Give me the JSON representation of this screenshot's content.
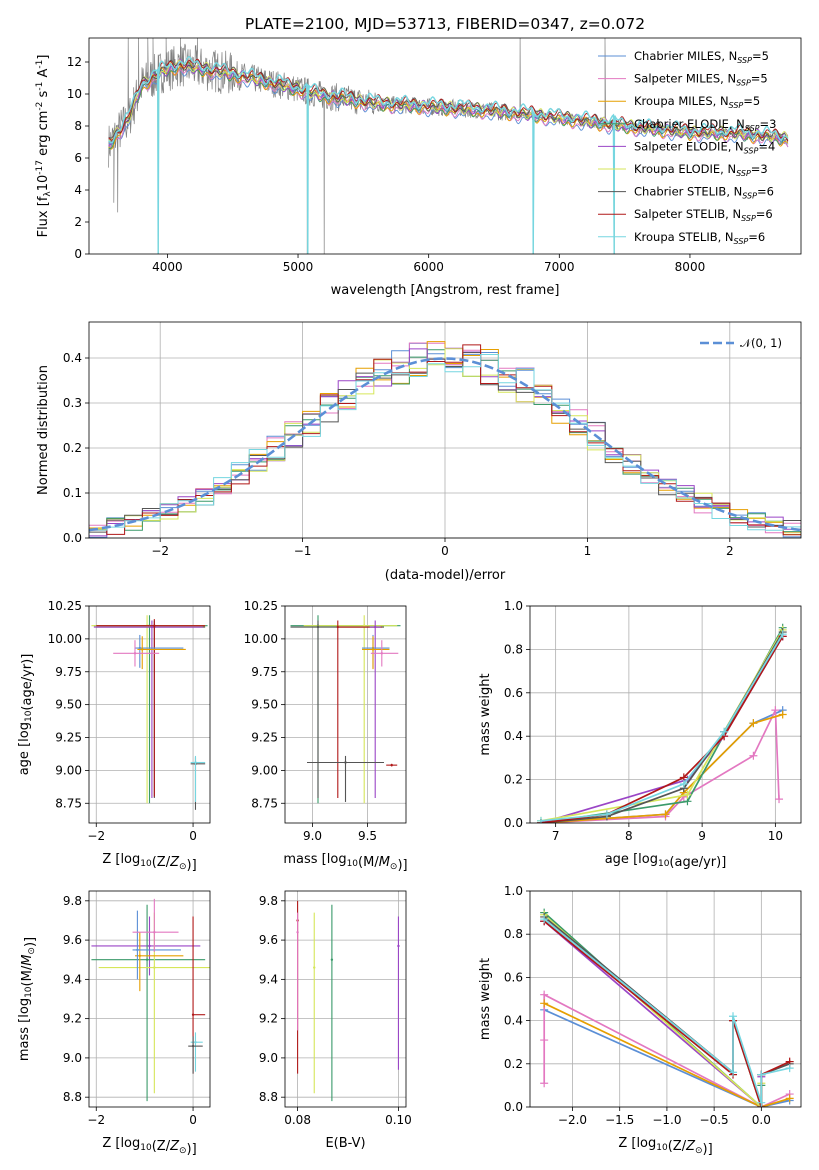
{
  "title": "PLATE=2100, MJD=53713, FIBERID=0347, z=0.072",
  "colors": {
    "chab_miles": "#5b8fd6",
    "salp_miles": "#e378c1",
    "krou_miles": "#e69f00",
    "chab_elodie": "#3a9a6a",
    "salp_elodie": "#9a45c6",
    "krou_elodie": "#d6e65a",
    "chab_stelib": "#555555",
    "salp_stelib": "#b01818",
    "krou_stelib": "#76d6e0",
    "data": "#808080",
    "gauss": "#5b8fd6"
  },
  "legend": [
    {
      "name": "Chabrier MILES, N",
      "sub": "SSP",
      "n": "=5",
      "color_key": "chab_miles"
    },
    {
      "name": "Salpeter MILES, N",
      "sub": "SSP",
      "n": "=5",
      "color_key": "salp_miles"
    },
    {
      "name": "Kroupa MILES, N",
      "sub": "SSP",
      "n": "=5",
      "color_key": "krou_miles"
    },
    {
      "name": "Chabrier ELODIE, N",
      "sub": "SSP",
      "n": "=3",
      "color_key": "chab_elodie"
    },
    {
      "name": "Salpeter ELODIE, N",
      "sub": "SSP",
      "n": "=4",
      "color_key": "salp_elodie"
    },
    {
      "name": "Kroupa ELODIE, N",
      "sub": "SSP",
      "n": "=3",
      "color_key": "krou_elodie"
    },
    {
      "name": "Chabrier STELIB, N",
      "sub": "SSP",
      "n": "=6",
      "color_key": "chab_stelib"
    },
    {
      "name": "Salpeter STELIB, N",
      "sub": "SSP",
      "n": "=6",
      "color_key": "salp_stelib"
    },
    {
      "name": "Kroupa STELIB, N",
      "sub": "SSP",
      "n": "=6",
      "color_key": "krou_stelib"
    }
  ],
  "chart_data": [
    {
      "id": "spectrum",
      "type": "line",
      "xlabel": "wavelength [Angstrom, rest frame]",
      "ylabel_parts": [
        "Flux [f",
        "λ",
        "10",
        "-17",
        " erg cm",
        "-2",
        " s",
        "-1",
        " A",
        "-1",
        "]"
      ],
      "xlim": [
        3400,
        8850
      ],
      "ylim": [
        0,
        13.5
      ],
      "xticks": [
        4000,
        5000,
        6000,
        7000,
        8000
      ],
      "yticks": [
        0,
        2,
        4,
        6,
        8,
        10,
        12
      ],
      "continuum_anchors": [
        [
          3550,
          6.8
        ],
        [
          3700,
          8.4
        ],
        [
          3800,
          10.5
        ],
        [
          3950,
          11.4
        ],
        [
          4100,
          11.8
        ],
        [
          4400,
          11.4
        ],
        [
          4800,
          10.7
        ],
        [
          5200,
          9.9
        ],
        [
          5600,
          9.4
        ],
        [
          6000,
          9.2
        ],
        [
          6400,
          9.0
        ],
        [
          6800,
          8.7
        ],
        [
          7200,
          8.3
        ],
        [
          7600,
          7.9
        ],
        [
          8000,
          7.6
        ],
        [
          8400,
          7.5
        ],
        [
          8750,
          7.2
        ]
      ],
      "data_spikes": [
        [
          3590,
          3.2
        ],
        [
          3620,
          2.6
        ],
        [
          3700,
          13.5
        ],
        [
          3780,
          13.5
        ],
        [
          3850,
          13.5
        ],
        [
          3890,
          13.5
        ],
        [
          3930,
          0
        ],
        [
          3990,
          13.5
        ],
        [
          4100,
          13.5
        ],
        [
          4230,
          13.5
        ],
        [
          5070,
          0
        ],
        [
          5200,
          0
        ],
        [
          6700,
          13.5
        ],
        [
          6800,
          0
        ],
        [
          7350,
          13.5
        ],
        [
          7420,
          0
        ]
      ],
      "model_dips": [
        [
          3930,
          0
        ],
        [
          5075,
          0
        ],
        [
          6800,
          0
        ],
        [
          7420,
          0
        ]
      ]
    },
    {
      "id": "residual-histogram",
      "type": "histogram",
      "xlabel": "(data-model)/error",
      "ylabel": "Normed distribution",
      "xlim": [
        -2.5,
        2.5
      ],
      "ylim": [
        0,
        0.48
      ],
      "xticks": [
        -2,
        -1,
        0,
        1,
        2
      ],
      "yticks": [
        0.0,
        0.1,
        0.2,
        0.3,
        0.4
      ],
      "bin_width": 0.125,
      "gauss_label": "𝒩(0, 1)"
    },
    {
      "id": "age-vs-Z",
      "type": "errorbar",
      "xlabel": "Z [log10(Z/Z⊙)]",
      "ylabel": "age  [log10(age/yr)]",
      "xlim": [
        -2.15,
        0.35
      ],
      "ylim": [
        8.6,
        10.25
      ],
      "xticks": [
        -2,
        0
      ],
      "yticks": [
        8.75,
        9.0,
        9.25,
        9.5,
        9.75,
        10.0,
        10.25
      ],
      "points": [
        {
          "c": "chab_elodie",
          "x": -0.9,
          "y": 10.1,
          "xe": [
            1.15,
            1.2
          ],
          "ye": [
            1.35,
            0.08
          ]
        },
        {
          "c": "krou_elodie",
          "x": -0.95,
          "y": 10.1,
          "xe": [
            1.15,
            1.2
          ],
          "ye": [
            1.35,
            0.08
          ]
        },
        {
          "c": "chab_stelib",
          "x": -0.8,
          "y": 10.09,
          "xe": [
            1.2,
            1.05
          ],
          "ye": [
            1.3,
            0.05
          ]
        },
        {
          "c": "salp_elodie",
          "x": -0.85,
          "y": 10.09,
          "xe": [
            1.2,
            1.05
          ],
          "ye": [
            1.3,
            0.05
          ]
        },
        {
          "c": "salp_stelib",
          "x": -0.8,
          "y": 10.1,
          "xe": [
            1.2,
            1.05
          ],
          "ye": [
            1.3,
            0.05
          ]
        },
        {
          "c": "chab_miles",
          "x": -1.1,
          "y": 9.93,
          "xe": [
            0.1,
            0.9
          ],
          "ye": [
            0.15,
            0.1
          ]
        },
        {
          "c": "krou_miles",
          "x": -1.05,
          "y": 9.92,
          "xe": [
            0.1,
            0.9
          ],
          "ye": [
            0.15,
            0.1
          ]
        },
        {
          "c": "salp_miles",
          "x": -1.2,
          "y": 9.89,
          "xe": [
            0.45,
            0.5
          ],
          "ye": [
            0.1,
            0.1
          ]
        },
        {
          "c": "chab_stelib",
          "x": 0.05,
          "y": 9.05,
          "xe": [
            0.1,
            0.2
          ],
          "ye": [
            0.35,
            0.05
          ]
        },
        {
          "c": "krou_stelib",
          "x": 0.05,
          "y": 9.06,
          "xe": [
            0.1,
            0.2
          ],
          "ye": [
            0.3,
            0.05
          ]
        }
      ]
    },
    {
      "id": "age-vs-mass",
      "type": "errorbar",
      "xlabel": "mass [log10(M/M⊙)]",
      "ylabel": "",
      "xlim": [
        8.75,
        9.85
      ],
      "ylim": [
        8.6,
        10.25
      ],
      "xticks": [
        9.0,
        9.5
      ],
      "yticks": [
        8.75,
        9.0,
        9.25,
        9.5,
        9.75,
        10.0,
        10.25
      ],
      "points": [
        {
          "c": "chab_elodie",
          "x": 9.05,
          "y": 10.1,
          "xe": [
            0.25,
            0.75
          ],
          "ye": [
            1.35,
            0.08
          ]
        },
        {
          "c": "krou_elodie",
          "x": 9.47,
          "y": 10.1,
          "xe": [
            0.55,
            0.3
          ],
          "ye": [
            1.35,
            0.08
          ]
        },
        {
          "c": "chab_stelib",
          "x": 9.05,
          "y": 10.09,
          "xe": [
            0.25,
            0.6
          ],
          "ye": [
            1.3,
            0.05
          ]
        },
        {
          "c": "salp_stelib",
          "x": 9.23,
          "y": 10.09,
          "xe": [
            0.0,
            0.4
          ],
          "ye": [
            1.3,
            0.05
          ]
        },
        {
          "c": "salp_elodie",
          "x": 9.57,
          "y": 10.09,
          "xe": [
            0.05,
            0.05
          ],
          "ye": [
            1.3,
            0.05
          ]
        },
        {
          "c": "chab_miles",
          "x": 9.55,
          "y": 9.93,
          "xe": [
            0.1,
            0.15
          ],
          "ye": [
            0.15,
            0.1
          ]
        },
        {
          "c": "krou_miles",
          "x": 9.55,
          "y": 9.92,
          "xe": [
            0.1,
            0.15
          ],
          "ye": [
            0.15,
            0.1
          ]
        },
        {
          "c": "salp_miles",
          "x": 9.63,
          "y": 9.89,
          "xe": [
            0.1,
            0.15
          ],
          "ye": [
            0.1,
            0.1
          ]
        },
        {
          "c": "chab_stelib",
          "x": 9.3,
          "y": 9.06,
          "xe": [
            0.35,
            0.35
          ],
          "ye": [
            0.3,
            0.05
          ]
        },
        {
          "c": "salp_stelib",
          "x": 9.72,
          "y": 9.04,
          "xe": [
            0.05,
            0.05
          ],
          "ye": [
            0.01,
            0.01
          ]
        }
      ]
    },
    {
      "id": "weight-vs-age",
      "type": "line",
      "xlabel": "age  [log10(age/yr)]",
      "ylabel": "mass weight",
      "xlim": [
        6.65,
        10.35
      ],
      "ylim": [
        0,
        1.0
      ],
      "xticks": [
        7,
        8,
        9,
        10
      ],
      "yticks": [
        0.0,
        0.2,
        0.4,
        0.6,
        0.8,
        1.0
      ],
      "series": [
        {
          "c": "chab_miles",
          "x": [
            6.8,
            8.5,
            8.75,
            9.7,
            10.1
          ],
          "y": [
            0.0,
            0.04,
            0.14,
            0.46,
            0.52
          ]
        },
        {
          "c": "salp_miles",
          "x": [
            6.8,
            8.5,
            8.75,
            9.7,
            10.0,
            10.05
          ],
          "y": [
            0.0,
            0.03,
            0.12,
            0.31,
            0.52,
            0.11
          ]
        },
        {
          "c": "krou_miles",
          "x": [
            6.8,
            8.5,
            8.75,
            9.7,
            10.1
          ],
          "y": [
            0.0,
            0.04,
            0.14,
            0.46,
            0.5
          ]
        },
        {
          "c": "chab_elodie",
          "x": [
            6.8,
            8.8,
            10.1
          ],
          "y": [
            0.0,
            0.1,
            0.9
          ]
        },
        {
          "c": "salp_elodie",
          "x": [
            6.8,
            8.8,
            9.3,
            10.1
          ],
          "y": [
            0.0,
            0.2,
            0.4,
            0.86
          ]
        },
        {
          "c": "krou_elodie",
          "x": [
            6.8,
            8.8,
            10.1
          ],
          "y": [
            0.01,
            0.13,
            0.89
          ]
        },
        {
          "c": "chab_stelib",
          "x": [
            6.8,
            7.7,
            8.75,
            9.3,
            10.1
          ],
          "y": [
            0.0,
            0.03,
            0.16,
            0.42,
            0.88
          ]
        },
        {
          "c": "salp_stelib",
          "x": [
            6.8,
            7.7,
            8.75,
            9.3,
            10.1
          ],
          "y": [
            0.0,
            0.04,
            0.21,
            0.4,
            0.86
          ]
        },
        {
          "c": "krou_stelib",
          "x": [
            6.8,
            7.7,
            8.75,
            9.3,
            10.1
          ],
          "y": [
            0.01,
            0.04,
            0.18,
            0.42,
            0.87
          ]
        }
      ]
    },
    {
      "id": "mass-vs-Z",
      "type": "errorbar",
      "xlabel": "Z [log10(Z/Z⊙)]",
      "ylabel": "mass [log10(M/M⊙)]",
      "xlim": [
        -2.15,
        0.35
      ],
      "ylim": [
        8.75,
        9.85
      ],
      "xticks": [
        -2,
        0
      ],
      "yticks": [
        8.8,
        9.0,
        9.2,
        9.4,
        9.6,
        9.8
      ],
      "points": [
        {
          "c": "salp_elodie",
          "x": -0.9,
          "y": 9.57,
          "xe": [
            1.2,
            1.05
          ],
          "ye": [
            0.15,
            0.15
          ]
        },
        {
          "c": "chab_elodie",
          "x": -0.95,
          "y": 9.5,
          "xe": [
            1.15,
            1.2
          ],
          "ye": [
            0.72,
            0.28
          ]
        },
        {
          "c": "krou_elodie",
          "x": -0.8,
          "y": 9.46,
          "xe": [
            1.15,
            1.2
          ],
          "ye": [
            0.64,
            0.28
          ]
        },
        {
          "c": "krou_miles",
          "x": -1.1,
          "y": 9.52,
          "xe": [
            0.1,
            0.9
          ],
          "ye": [
            0.18,
            0.12
          ]
        },
        {
          "c": "chab_miles",
          "x": -1.15,
          "y": 9.55,
          "xe": [
            0.1,
            0.9
          ],
          "ye": [
            0.15,
            0.2
          ]
        },
        {
          "c": "salp_miles",
          "x": -0.8,
          "y": 9.64,
          "xe": [
            0.45,
            0.5
          ],
          "ye": [
            0.1,
            0.17
          ]
        },
        {
          "c": "salp_stelib",
          "x": 0.0,
          "y": 9.22,
          "xe": [
            0.0,
            0.25
          ],
          "ye": [
            0.3,
            0.5
          ]
        },
        {
          "c": "krou_stelib",
          "x": 0.05,
          "y": 9.08,
          "xe": [
            0.1,
            0.15
          ],
          "ye": [
            0.15,
            0.05
          ]
        },
        {
          "c": "chab_stelib",
          "x": 0.0,
          "y": 9.06,
          "xe": [
            0.1,
            0.2
          ],
          "ye": [
            0.14,
            0.05
          ]
        }
      ]
    },
    {
      "id": "mass-vs-ebv",
      "type": "errorbar",
      "xlabel": "E(B-V)",
      "ylabel": "",
      "xlim": [
        0.0775,
        0.1015
      ],
      "ylim": [
        8.75,
        9.85
      ],
      "xticks": [
        0.08,
        0.1
      ],
      "yticks": [
        8.8,
        9.0,
        9.2,
        9.4,
        9.6,
        9.8
      ],
      "points": [
        {
          "c": "salp_stelib",
          "x": 0.08,
          "y": 9.7,
          "xe": [
            0,
            0
          ],
          "ye": [
            0.78,
            0.1
          ]
        },
        {
          "c": "salp_miles",
          "x": 0.08,
          "y": 9.64,
          "xe": [
            0,
            0
          ],
          "ye": [
            0.5,
            0.1
          ]
        },
        {
          "c": "krou_elodie",
          "x": 0.0833,
          "y": 9.46,
          "xe": [
            0,
            0
          ],
          "ye": [
            0.64,
            0.28
          ]
        },
        {
          "c": "chab_elodie",
          "x": 0.0868,
          "y": 9.5,
          "xe": [
            0,
            0
          ],
          "ye": [
            0.72,
            0.28
          ]
        },
        {
          "c": "salp_elodie",
          "x": 0.1,
          "y": 9.57,
          "xe": [
            0,
            0
          ],
          "ye": [
            0.63,
            0.15
          ]
        }
      ]
    },
    {
      "id": "weight-vs-Z",
      "type": "line",
      "xlabel": "Z [log10(Z/Z⊙)]",
      "ylabel": "mass weight",
      "xlim": [
        -2.45,
        0.42
      ],
      "ylim": [
        0,
        1.0
      ],
      "xticks": [
        -2.0,
        -1.5,
        -1.0,
        -0.5,
        0.0
      ],
      "yticks": [
        0.0,
        0.2,
        0.4,
        0.6,
        0.8,
        1.0
      ],
      "series": [
        {
          "c": "chab_miles",
          "x": [
            -2.3,
            -0.0,
            0.3
          ],
          "y": [
            0.45,
            0.0,
            0.03
          ]
        },
        {
          "c": "salp_miles",
          "x": [
            -2.3,
            -2.3,
            -2.3,
            0.0,
            0.3
          ],
          "y": [
            0.11,
            0.31,
            0.52,
            0.0,
            0.06
          ]
        },
        {
          "c": "krou_miles",
          "x": [
            -2.3,
            0.0,
            0.3
          ],
          "y": [
            0.48,
            0.0,
            0.04
          ]
        },
        {
          "c": "chab_elodie",
          "x": [
            -2.3,
            0.0,
            0.0
          ],
          "y": [
            0.9,
            0.0,
            0.1
          ]
        },
        {
          "c": "salp_elodie",
          "x": [
            -2.3,
            0.0,
            0.0
          ],
          "y": [
            0.86,
            0.0,
            0.14
          ]
        },
        {
          "c": "krou_elodie",
          "x": [
            -2.3,
            0.0,
            0.0
          ],
          "y": [
            0.89,
            0.0,
            0.11
          ]
        },
        {
          "c": "chab_stelib",
          "x": [
            -2.3,
            -0.3,
            -0.3,
            0.0,
            0.0,
            0.3
          ],
          "y": [
            0.88,
            0.16,
            0.4,
            0.0,
            0.15,
            0.2
          ]
        },
        {
          "c": "salp_stelib",
          "x": [
            -2.3,
            -0.3,
            -0.3,
            0.0,
            0.0,
            0.3
          ],
          "y": [
            0.86,
            0.15,
            0.4,
            0.0,
            0.15,
            0.21
          ]
        },
        {
          "c": "krou_stelib",
          "x": [
            -2.3,
            -0.3,
            -0.3,
            0.0,
            0.0,
            0.3
          ],
          "y": [
            0.87,
            0.16,
            0.42,
            0.02,
            0.15,
            0.18
          ]
        }
      ]
    }
  ]
}
